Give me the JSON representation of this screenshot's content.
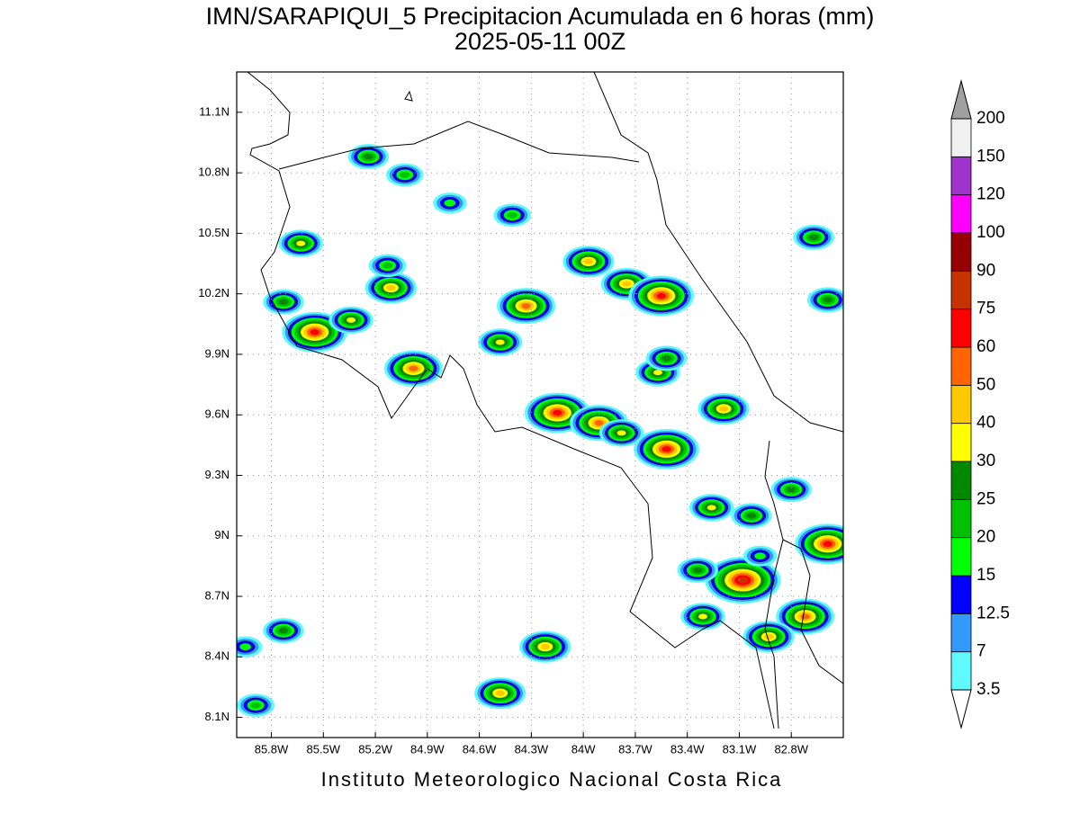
{
  "map": {
    "title": "IMN/SARAPIQUI_5 Precipitacion Acumulada en 6 horas (mm)",
    "subtitle": "2025-05-11 00Z",
    "footer": "Instituto Meteorologico Nacional Costa Rica",
    "xlim": [
      -86.0,
      -82.5
    ],
    "ylim": [
      8.0,
      11.3
    ],
    "xticks": [
      {
        "value": -85.8,
        "label": "85.8W"
      },
      {
        "value": -85.5,
        "label": "85.5W"
      },
      {
        "value": -85.2,
        "label": "85.2W"
      },
      {
        "value": -84.9,
        "label": "84.9W"
      },
      {
        "value": -84.6,
        "label": "84.6W"
      },
      {
        "value": -84.3,
        "label": "84.3W"
      },
      {
        "value": -84.0,
        "label": "84W"
      },
      {
        "value": -83.7,
        "label": "83.7W"
      },
      {
        "value": -83.4,
        "label": "83.4W"
      },
      {
        "value": -83.1,
        "label": "83.1W"
      },
      {
        "value": -82.8,
        "label": "82.8W"
      }
    ],
    "yticks": [
      {
        "value": 8.1,
        "label": "8.1N"
      },
      {
        "value": 8.4,
        "label": "8.4N"
      },
      {
        "value": 8.7,
        "label": "8.7N"
      },
      {
        "value": 9.0,
        "label": "9N"
      },
      {
        "value": 9.3,
        "label": "9.3N"
      },
      {
        "value": 9.6,
        "label": "9.6N"
      },
      {
        "value": 9.9,
        "label": "9.9N"
      },
      {
        "value": 10.2,
        "label": "10.2N"
      },
      {
        "value": 10.5,
        "label": "10.5N"
      },
      {
        "value": 10.8,
        "label": "10.8N"
      },
      {
        "value": 11.1,
        "label": "11.1N"
      }
    ],
    "grid": true,
    "levels": [
      3.5,
      7,
      12.5,
      15,
      20,
      25,
      30,
      40,
      50,
      60,
      75,
      90,
      100,
      120,
      150,
      200
    ],
    "colors": [
      "#5ffaff",
      "#3399ff",
      "#0000ff",
      "#00ff00",
      "#00c000",
      "#008800",
      "#ffff00",
      "#ffc800",
      "#ff6400",
      "#ff0000",
      "#c83200",
      "#960000",
      "#ff00ff",
      "#a033cc",
      "#f0f0f0"
    ],
    "under_color": "#ffffff",
    "over_color": "#a0a0a0",
    "cells": [
      {
        "lon": -85.63,
        "lat": 10.45,
        "value": 30
      },
      {
        "lon": -85.55,
        "lat": 10.01,
        "value": 60
      },
      {
        "lon": -85.73,
        "lat": 10.16,
        "value": 25
      },
      {
        "lon": -85.34,
        "lat": 10.07,
        "value": 30
      },
      {
        "lon": -85.11,
        "lat": 10.23,
        "value": 40
      },
      {
        "lon": -85.13,
        "lat": 10.34,
        "value": 20
      },
      {
        "lon": -84.98,
        "lat": 9.83,
        "value": 50
      },
      {
        "lon": -85.24,
        "lat": 10.88,
        "value": 25
      },
      {
        "lon": -85.03,
        "lat": 10.79,
        "value": 20
      },
      {
        "lon": -84.77,
        "lat": 10.65,
        "value": 15
      },
      {
        "lon": -84.41,
        "lat": 10.59,
        "value": 20
      },
      {
        "lon": -84.33,
        "lat": 10.14,
        "value": 50
      },
      {
        "lon": -84.48,
        "lat": 9.96,
        "value": 30
      },
      {
        "lon": -83.97,
        "lat": 10.36,
        "value": 40
      },
      {
        "lon": -83.75,
        "lat": 10.25,
        "value": 40
      },
      {
        "lon": -83.55,
        "lat": 10.19,
        "value": 60
      },
      {
        "lon": -83.57,
        "lat": 9.81,
        "value": 30
      },
      {
        "lon": -83.52,
        "lat": 9.88,
        "value": 25
      },
      {
        "lon": -84.15,
        "lat": 9.61,
        "value": 60
      },
      {
        "lon": -83.91,
        "lat": 9.56,
        "value": 50
      },
      {
        "lon": -83.52,
        "lat": 9.43,
        "value": 60
      },
      {
        "lon": -83.19,
        "lat": 9.63,
        "value": 40
      },
      {
        "lon": -83.26,
        "lat": 9.14,
        "value": 30
      },
      {
        "lon": -83.03,
        "lat": 9.1,
        "value": 25
      },
      {
        "lon": -82.8,
        "lat": 9.23,
        "value": 25
      },
      {
        "lon": -82.59,
        "lat": 8.96,
        "value": 60
      },
      {
        "lon": -83.08,
        "lat": 8.78,
        "value": 75
      },
      {
        "lon": -83.34,
        "lat": 8.83,
        "value": 25
      },
      {
        "lon": -83.31,
        "lat": 8.6,
        "value": 30
      },
      {
        "lon": -82.72,
        "lat": 8.6,
        "value": 50
      },
      {
        "lon": -82.67,
        "lat": 10.48,
        "value": 25
      },
      {
        "lon": -82.59,
        "lat": 10.17,
        "value": 25
      },
      {
        "lon": -84.22,
        "lat": 8.45,
        "value": 40
      },
      {
        "lon": -84.48,
        "lat": 8.22,
        "value": 40
      },
      {
        "lon": -85.89,
        "lat": 8.16,
        "value": 20
      },
      {
        "lon": -85.95,
        "lat": 8.45,
        "value": 15
      },
      {
        "lon": -85.73,
        "lat": 8.53,
        "value": 25
      },
      {
        "lon": -83.78,
        "lat": 9.51,
        "value": 30
      },
      {
        "lon": -82.98,
        "lat": 8.9,
        "value": 15
      },
      {
        "lon": -82.93,
        "lat": 8.5,
        "value": 40
      }
    ]
  }
}
